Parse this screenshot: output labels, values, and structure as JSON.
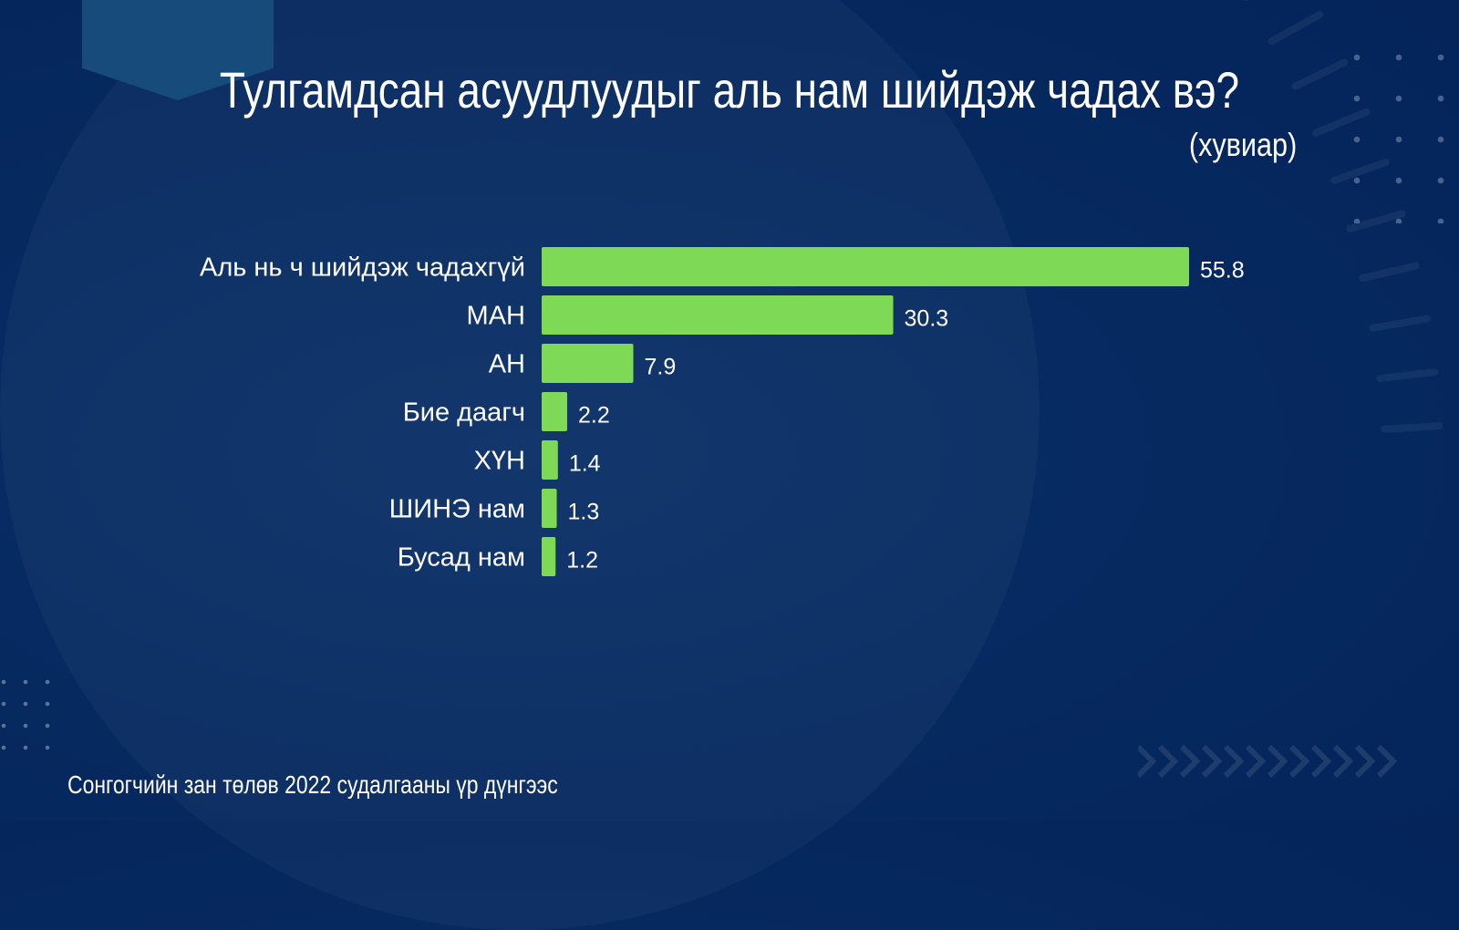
{
  "title": "Тулгамдсан асуудлуудыг аль нам шийдэж чадах вэ?",
  "subtitle": "(хувиар)",
  "footer": "Сонгогчийн зан төлөв 2022 судалгааны үр дүнгээс",
  "colors": {
    "background": "#062a61",
    "bar": "#7ed957",
    "text": "#ffffff",
    "accent": "#174b7c"
  },
  "chart_data": {
    "type": "bar",
    "orientation": "horizontal",
    "title": "Тулгамдсан асуудлуудыг аль нам шийдэж чадах вэ?",
    "subtitle": "(хувиар)",
    "categories": [
      "Аль нь ч шийдэж чадахгүй",
      "МАН",
      "АН",
      "Бие даагч",
      "ХҮН",
      "ШИНЭ нам",
      "Бусад нам"
    ],
    "values": [
      55.8,
      30.3,
      7.9,
      2.2,
      1.4,
      1.3,
      1.2
    ],
    "value_labels": [
      "55.8",
      "30.3",
      "7.9",
      "2.2",
      "1.4",
      "1.3",
      "1.2"
    ],
    "xlim": [
      0,
      55.8
    ],
    "grid": false,
    "legend": "none"
  }
}
